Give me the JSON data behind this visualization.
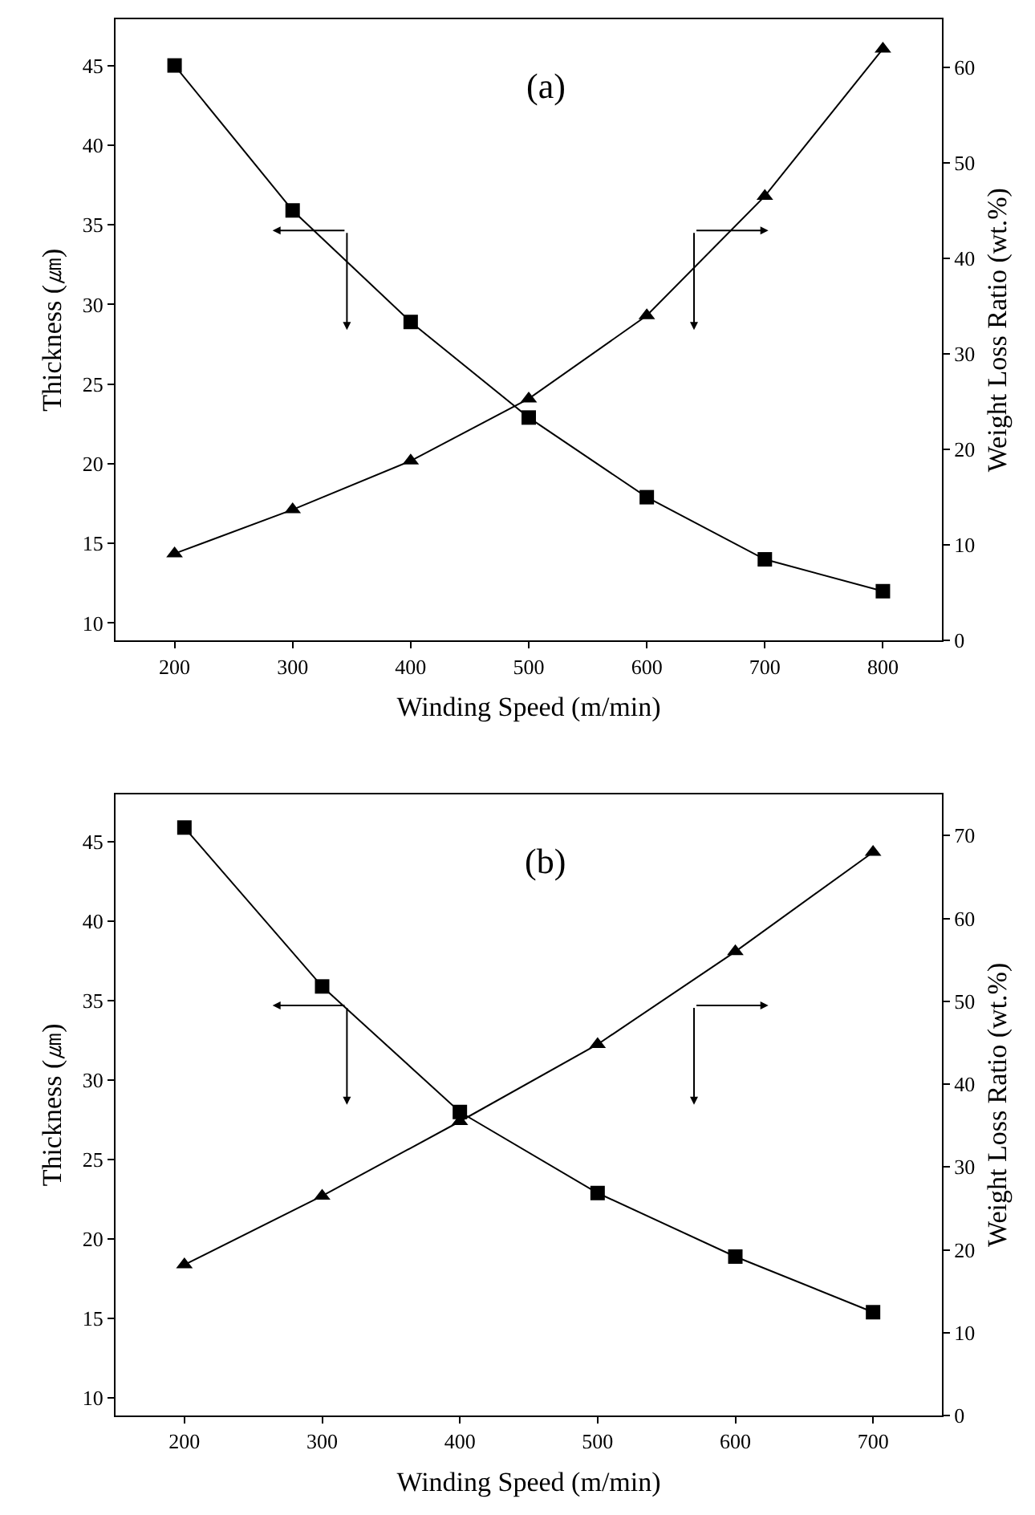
{
  "chart_data": [
    {
      "type": "line",
      "annotations": [
        "(a)"
      ],
      "xlabel": "Winding Speed (m/min)",
      "ylabel": "Thickness (㎛)",
      "y2label": "Weight Loss Ratio (wt.%)",
      "x": [
        200,
        300,
        400,
        500,
        600,
        700,
        800
      ],
      "xlim": [
        150,
        850
      ],
      "xticks": [
        200,
        300,
        400,
        500,
        600,
        700,
        800
      ],
      "ylim": [
        8.9,
        47.9
      ],
      "yticks": [
        10,
        15,
        20,
        25,
        30,
        35,
        40,
        45
      ],
      "y2lim": [
        0,
        65
      ],
      "y2ticks": [
        0,
        10,
        20,
        30,
        40,
        50,
        60
      ],
      "line_style": "solid",
      "series": [
        {
          "color": "#000000",
          "marker": "square",
          "values": [
            45,
            35.9,
            28.9,
            22.9,
            17.9,
            14.0,
            12.0
          ]
        },
        {
          "color": "#000000",
          "marker": "triangle",
          "axis": "y2",
          "values": [
            9.1,
            13.7,
            18.8,
            25.3,
            34.0,
            46.5,
            61.9
          ]
        }
      ]
    },
    {
      "type": "line",
      "annotations": [
        "(b)"
      ],
      "xlabel": "Winding Speed (m/min)",
      "ylabel": "Thickness (㎛)",
      "y2label": "Weight Loss Ratio (wt.%)",
      "x": [
        200,
        300,
        400,
        500,
        600,
        700
      ],
      "xlim": [
        150,
        750
      ],
      "xticks": [
        200,
        300,
        400,
        500,
        600,
        700
      ],
      "ylim": [
        8.9,
        48
      ],
      "yticks": [
        10,
        15,
        20,
        25,
        30,
        35,
        40,
        45
      ],
      "y2lim": [
        0,
        75
      ],
      "y2ticks": [
        0,
        10,
        20,
        30,
        40,
        50,
        60,
        70
      ],
      "line_style": "solid",
      "series": [
        {
          "color": "#000000",
          "marker": "square",
          "values": [
            45.9,
            35.9,
            28.0,
            22.9,
            18.9,
            15.4
          ]
        },
        {
          "color": "#000000",
          "marker": "triangle",
          "axis": "y2",
          "values": [
            18.2,
            26.5,
            35.5,
            44.8,
            56.0,
            68.0
          ]
        }
      ]
    }
  ]
}
